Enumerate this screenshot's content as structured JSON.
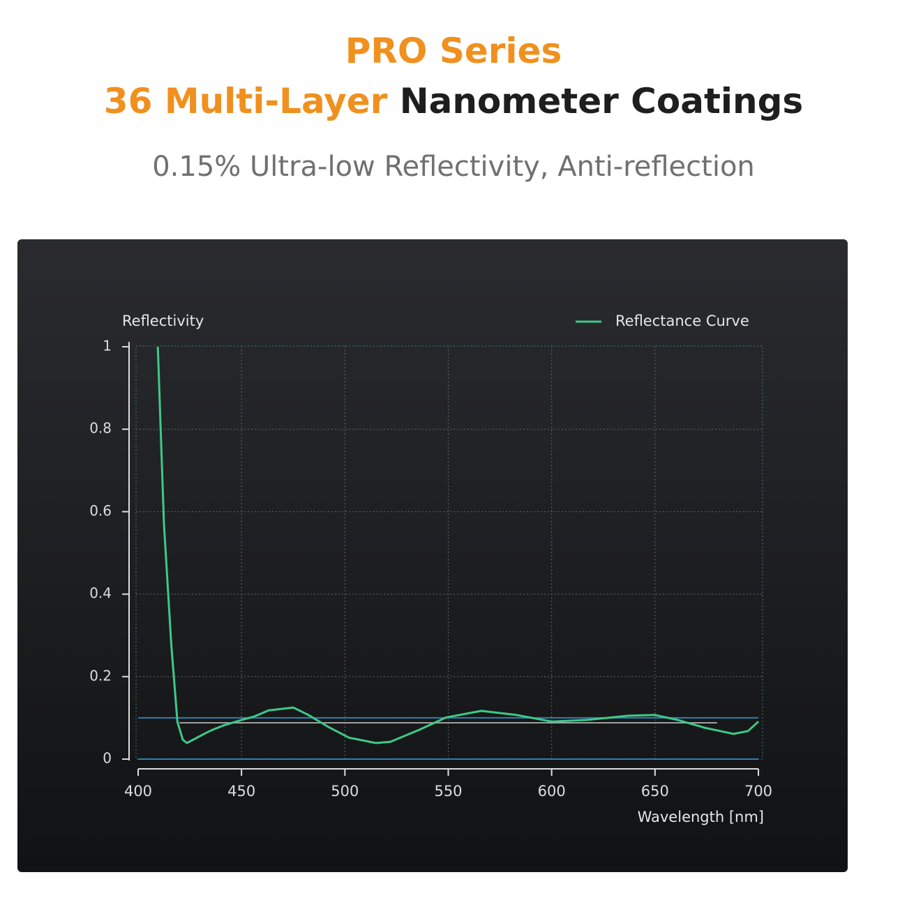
{
  "header": {
    "title": "PRO Series",
    "headline_highlight": "36 Multi-Layer",
    "headline_rest": "Nanometer Coatings",
    "subtitle": "0.15% Ultra-low Reflectivity, Anti-reflection"
  },
  "chart_data": {
    "type": "line",
    "y_label": "Reflectivity",
    "x_label": "Wavelength [nm]",
    "xlim": [
      400,
      700
    ],
    "xticks": [
      400,
      450,
      500,
      550,
      600,
      650,
      700
    ],
    "ylim": [
      0,
      1
    ],
    "yticks": [
      0,
      0.2,
      0.4,
      0.6,
      0.8,
      1
    ],
    "grid": true,
    "legend": "top-right",
    "reference_lines": [
      {
        "value": 0.1,
        "color": "#2f7fae",
        "xrange": [
          400,
          700
        ]
      },
      {
        "value": 0,
        "color": "#2f7fae",
        "xrange": [
          400,
          700
        ]
      },
      {
        "value": 0.088,
        "color": "#a0a0a0",
        "xrange": [
          420,
          680
        ]
      }
    ],
    "series": [
      {
        "name": "Reflectance Curve",
        "color": "#3ec98a",
        "x": [
          409.5,
          412.5,
          416,
          419,
          421.6,
          423.6,
          427.7,
          433,
          436,
          441,
          450,
          456,
          463,
          475,
          482,
          492,
          502,
          515,
          522,
          536,
          549,
          566,
          583,
          600,
          617,
          637,
          650,
          661,
          674,
          688,
          695,
          700
        ],
        "values": [
          1.0,
          0.57,
          0.28,
          0.09,
          0.047,
          0.039,
          0.05,
          0.064,
          0.071,
          0.081,
          0.095,
          0.103,
          0.118,
          0.125,
          0.108,
          0.078,
          0.052,
          0.039,
          0.042,
          0.071,
          0.101,
          0.117,
          0.107,
          0.091,
          0.095,
          0.105,
          0.107,
          0.095,
          0.076,
          0.061,
          0.068,
          0.091
        ]
      }
    ]
  }
}
